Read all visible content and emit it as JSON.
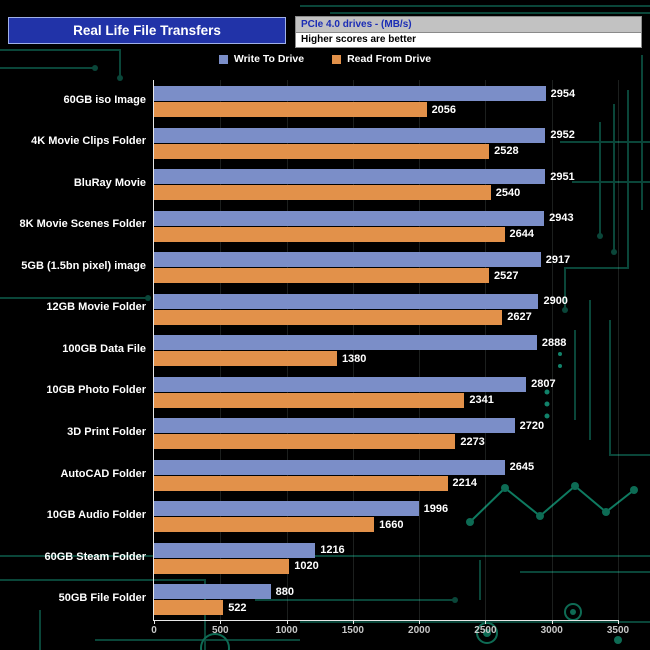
{
  "header": {
    "title": "Real Life File Transfers",
    "subtitle_top": "PCIe 4.0 drives - (MB/s)",
    "subtitle_bottom": "Higher scores are better"
  },
  "colors": {
    "write_bar": "#7b8ec8",
    "read_bar": "#e2914a",
    "title_box_bg": "#2133a8",
    "background": "#000000",
    "circuit_trace": "#0a4639"
  },
  "legend": [
    {
      "label": "Write To Drive",
      "color": "#7b8ec8"
    },
    {
      "label": "Read From Drive",
      "color": "#e2914a"
    }
  ],
  "chart_data": {
    "type": "bar",
    "orientation": "horizontal",
    "title": "Real Life File Transfers",
    "subtitle": "PCIe 4.0 drives - (MB/s) — Higher scores are better",
    "xlabel": "",
    "ylabel": "",
    "xlim": [
      0,
      3500
    ],
    "xticks": [
      0,
      500,
      1000,
      1500,
      2000,
      2500,
      3000,
      3500
    ],
    "grid": true,
    "legend_position": "top",
    "categories": [
      "60GB iso Image",
      "4K Movie Clips Folder",
      "BluRay Movie",
      "8K Movie Scenes Folder",
      "5GB (1.5bn pixel) image",
      "12GB Movie Folder",
      "100GB Data File",
      "10GB Photo Folder",
      "3D Print Folder",
      "AutoCAD Folder",
      "10GB Audio Folder",
      "60GB Steam Folder",
      "50GB File Folder"
    ],
    "series": [
      {
        "name": "Write To Drive",
        "color": "#7b8ec8",
        "values": [
          2954,
          2952,
          2951,
          2943,
          2917,
          2900,
          2888,
          2807,
          2720,
          2645,
          1996,
          1216,
          880
        ]
      },
      {
        "name": "Read From Drive",
        "color": "#e2914a",
        "values": [
          2056,
          2528,
          2540,
          2644,
          2527,
          2627,
          1380,
          2341,
          2273,
          2214,
          1660,
          1020,
          522
        ]
      }
    ]
  }
}
